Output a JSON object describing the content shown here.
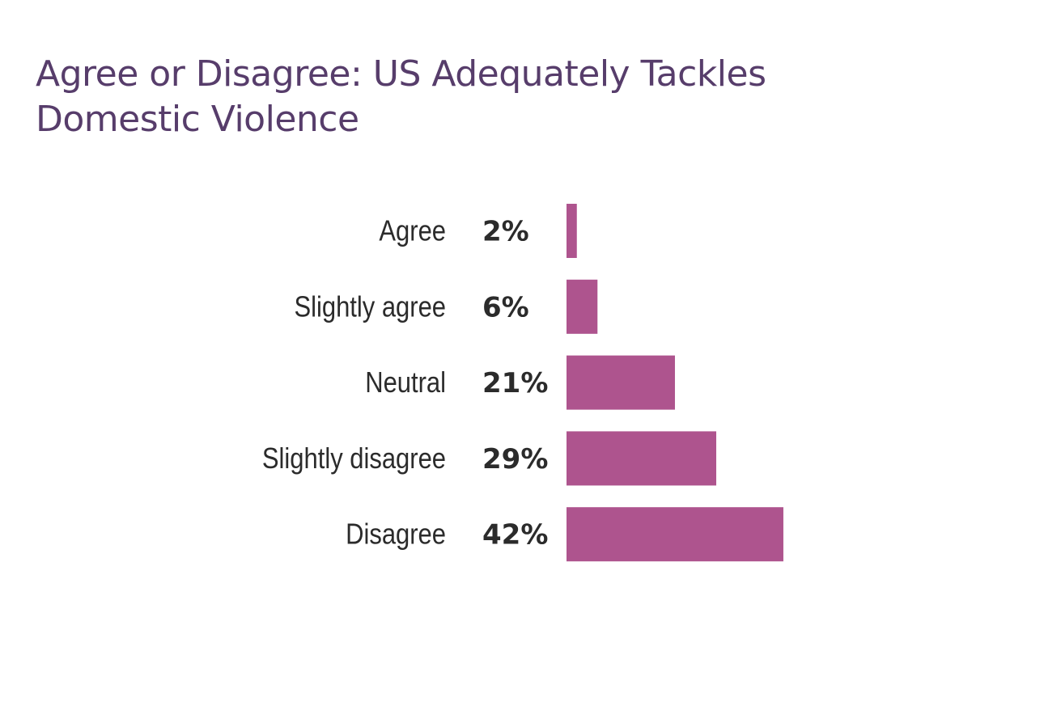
{
  "chart_data": {
    "type": "bar",
    "orientation": "horizontal",
    "title": "Agree or Disagree: US Adequately Tackles Domestic Violence",
    "categories": [
      "Agree",
      "Slightly agree",
      "Neutral",
      "Slightly disagree",
      "Disagree"
    ],
    "values": [
      2,
      6,
      21,
      29,
      42
    ],
    "value_labels": [
      "2%",
      "6%",
      "21%",
      "29%",
      "42%"
    ],
    "unit": "%",
    "grid": false,
    "axes_visible": false,
    "colors": {
      "bar": "#ae548e",
      "title": "#573d6b",
      "text": "#2b2b2b"
    }
  }
}
